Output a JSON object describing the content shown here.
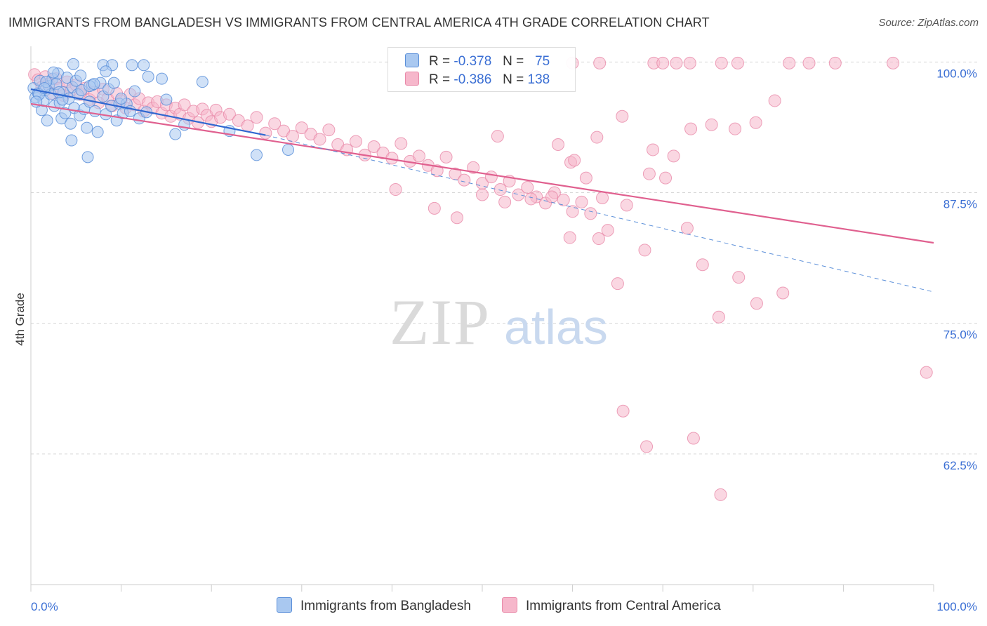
{
  "title": "IMMIGRANTS FROM BANGLADESH VS IMMIGRANTS FROM CENTRAL AMERICA 4TH GRADE CORRELATION CHART",
  "source": "Source: ZipAtlas.com",
  "watermark": {
    "zip": "ZIP",
    "atlas": "atlas"
  },
  "legend": {
    "r_label": "R =",
    "n_label": "N =",
    "rows": [
      {
        "series": "Immigrants from Bangladesh",
        "r": "-0.378",
        "n": "75"
      },
      {
        "series": "Immigrants from Central America",
        "r": "-0.386",
        "n": "138"
      }
    ]
  },
  "colors": {
    "blue_fill": "#a9c8f0",
    "blue_stroke": "#5b8fd9",
    "blue_line": "#3068d0",
    "pink_fill": "#f6b7cb",
    "pink_stroke": "#e98aa9",
    "pink_line": "#e0608f",
    "axis_label": "#3b6fd4",
    "grid": "#d6d6d6"
  },
  "chart_data": {
    "type": "scatter",
    "title": "IMMIGRANTS FROM BANGLADESH VS IMMIGRANTS FROM CENTRAL AMERICA 4TH GRADE CORRELATION CHART",
    "xlabel": "",
    "ylabel": "4th Grade",
    "xlim": [
      0,
      100
    ],
    "ylim": [
      50,
      101.5
    ],
    "x_tick_labels": [
      "0.0%",
      "100.0%"
    ],
    "y_ticks": [
      100.0,
      87.5,
      75.0,
      62.5
    ],
    "y_tick_labels": [
      "100.0%",
      "87.5%",
      "75.0%",
      "62.5%"
    ],
    "series": [
      {
        "name": "Immigrants from Bangladesh",
        "color": "blue",
        "trend": {
          "x0": 0,
          "y0": 97.4,
          "x1": 26,
          "y1": 93.0
        },
        "trend_dashed": {
          "x0": 26,
          "y0": 93.0,
          "x1": 100,
          "y1": 78.0
        },
        "points": [
          [
            0.3,
            97.5
          ],
          [
            0.5,
            96.6
          ],
          [
            0.8,
            97.0
          ],
          [
            1.0,
            98.2
          ],
          [
            1.2,
            95.4
          ],
          [
            1.4,
            96.3
          ],
          [
            1.6,
            97.3
          ],
          [
            1.8,
            94.4
          ],
          [
            2.0,
            97.7
          ],
          [
            2.2,
            96.9
          ],
          [
            2.4,
            98.4
          ],
          [
            2.6,
            95.8
          ],
          [
            2.8,
            97.9
          ],
          [
            3.0,
            98.9
          ],
          [
            3.2,
            96.1
          ],
          [
            3.4,
            94.6
          ],
          [
            3.6,
            97.1
          ],
          [
            3.8,
            95.1
          ],
          [
            4.0,
            98.5
          ],
          [
            4.2,
            96.5
          ],
          [
            4.4,
            94.1
          ],
          [
            4.6,
            97.6
          ],
          [
            4.8,
            95.6
          ],
          [
            5.0,
            98.2
          ],
          [
            5.2,
            96.9
          ],
          [
            5.4,
            94.9
          ],
          [
            5.6,
            97.3
          ],
          [
            5.9,
            95.5
          ],
          [
            6.2,
            93.7
          ],
          [
            6.5,
            96.2
          ],
          [
            6.8,
            97.8
          ],
          [
            7.1,
            95.3
          ],
          [
            7.4,
            93.3
          ],
          [
            7.7,
            98.0
          ],
          [
            8.0,
            96.7
          ],
          [
            8.3,
            95.0
          ],
          [
            8.6,
            97.4
          ],
          [
            8.9,
            95.8
          ],
          [
            9.2,
            98.0
          ],
          [
            9.5,
            94.4
          ],
          [
            9.8,
            96.0
          ],
          [
            10.2,
            95.1
          ],
          [
            10.6,
            96.0
          ],
          [
            11.0,
            95.3
          ],
          [
            11.5,
            97.2
          ],
          [
            12.0,
            94.6
          ],
          [
            12.5,
            99.7
          ],
          [
            13.0,
            98.6
          ],
          [
            14.5,
            98.4
          ],
          [
            16.0,
            93.1
          ],
          [
            6.3,
            90.9
          ],
          [
            4.5,
            92.5
          ],
          [
            8.0,
            99.7
          ],
          [
            9.0,
            99.7
          ],
          [
            6.5,
            97.7
          ],
          [
            3.5,
            96.4
          ],
          [
            2.5,
            99.0
          ],
          [
            1.7,
            98.1
          ],
          [
            0.9,
            96.9
          ],
          [
            4.7,
            99.8
          ],
          [
            15.0,
            96.4
          ],
          [
            19.0,
            98.1
          ],
          [
            22.0,
            93.4
          ],
          [
            17.0,
            94.0
          ],
          [
            12.8,
            95.2
          ],
          [
            10.0,
            96.5
          ],
          [
            7.0,
            97.9
          ],
          [
            5.5,
            98.7
          ],
          [
            3.1,
            97.1
          ],
          [
            1.5,
            97.5
          ],
          [
            0.6,
            96.2
          ],
          [
            8.3,
            99.1
          ],
          [
            11.2,
            99.7
          ],
          [
            25.0,
            91.1
          ],
          [
            28.5,
            91.6
          ]
        ]
      },
      {
        "name": "Immigrants from Central America",
        "color": "pink",
        "trend": {
          "x0": 0,
          "y0": 96.0,
          "x1": 100,
          "y1": 82.7
        },
        "points": [
          [
            0.4,
            98.8
          ],
          [
            0.8,
            98.3
          ],
          [
            1.2,
            97.6
          ],
          [
            1.6,
            98.6
          ],
          [
            2.0,
            97.9
          ],
          [
            2.4,
            97.0
          ],
          [
            2.8,
            98.4
          ],
          [
            3.2,
            97.5
          ],
          [
            3.6,
            96.8
          ],
          [
            4.0,
            98.1
          ],
          [
            4.5,
            97.3
          ],
          [
            5.0,
            97.8
          ],
          [
            5.5,
            96.9
          ],
          [
            6.0,
            97.5
          ],
          [
            6.5,
            96.4
          ],
          [
            7.0,
            97.1
          ],
          [
            7.5,
            96.1
          ],
          [
            8.0,
            97.4
          ],
          [
            8.5,
            96.5
          ],
          [
            9.0,
            95.8
          ],
          [
            9.5,
            97.0
          ],
          [
            10.0,
            96.3
          ],
          [
            10.5,
            95.6
          ],
          [
            11.0,
            96.9
          ],
          [
            11.5,
            95.9
          ],
          [
            12.0,
            96.5
          ],
          [
            12.5,
            95.3
          ],
          [
            13.0,
            96.1
          ],
          [
            13.5,
            95.6
          ],
          [
            14.0,
            96.2
          ],
          [
            14.5,
            95.1
          ],
          [
            15.0,
            95.9
          ],
          [
            15.5,
            94.8
          ],
          [
            16.0,
            95.6
          ],
          [
            16.5,
            95.0
          ],
          [
            17.0,
            95.9
          ],
          [
            17.5,
            94.6
          ],
          [
            18.0,
            95.3
          ],
          [
            18.5,
            94.2
          ],
          [
            19.0,
            95.5
          ],
          [
            19.5,
            94.9
          ],
          [
            20.0,
            94.3
          ],
          [
            20.5,
            95.4
          ],
          [
            21.0,
            94.7
          ],
          [
            22.0,
            95.0
          ],
          [
            23.0,
            94.4
          ],
          [
            24.0,
            93.9
          ],
          [
            25.0,
            94.7
          ],
          [
            26.0,
            93.2
          ],
          [
            27.0,
            94.1
          ],
          [
            28.0,
            93.4
          ],
          [
            29.0,
            92.9
          ],
          [
            30.0,
            93.7
          ],
          [
            31.0,
            93.1
          ],
          [
            32.0,
            92.6
          ],
          [
            33.0,
            93.5
          ],
          [
            34.0,
            92.1
          ],
          [
            35.0,
            91.6
          ],
          [
            36.0,
            92.4
          ],
          [
            37.0,
            91.1
          ],
          [
            38.0,
            91.9
          ],
          [
            39.0,
            91.3
          ],
          [
            40.0,
            90.8
          ],
          [
            41.0,
            92.2
          ],
          [
            42.0,
            90.5
          ],
          [
            43.0,
            91.0
          ],
          [
            44.0,
            90.1
          ],
          [
            45.0,
            89.6
          ],
          [
            46.0,
            90.9
          ],
          [
            47.0,
            89.3
          ],
          [
            48.0,
            88.7
          ],
          [
            49.0,
            89.9
          ],
          [
            50.0,
            88.4
          ],
          [
            51.0,
            89.0
          ],
          [
            52.0,
            87.8
          ],
          [
            53.0,
            88.6
          ],
          [
            54.0,
            87.3
          ],
          [
            55.0,
            88.0
          ],
          [
            56.0,
            87.1
          ],
          [
            57.0,
            86.5
          ],
          [
            58.0,
            87.5
          ],
          [
            59.0,
            86.8
          ],
          [
            60.0,
            85.7
          ],
          [
            61.0,
            86.6
          ],
          [
            62.0,
            85.5
          ],
          [
            40.4,
            87.8
          ],
          [
            44.7,
            86.0
          ],
          [
            47.2,
            85.1
          ],
          [
            50.0,
            87.3
          ],
          [
            52.5,
            86.6
          ],
          [
            55.4,
            86.9
          ],
          [
            57.7,
            87.1
          ],
          [
            59.8,
            90.4
          ],
          [
            61.5,
            88.9
          ],
          [
            63.3,
            87.0
          ],
          [
            66.0,
            86.3
          ],
          [
            68.5,
            89.3
          ],
          [
            70.3,
            88.9
          ],
          [
            72.7,
            84.1
          ],
          [
            74.4,
            80.6
          ],
          [
            76.2,
            75.6
          ],
          [
            78.4,
            79.4
          ],
          [
            80.4,
            76.9
          ],
          [
            83.3,
            77.9
          ],
          [
            59.7,
            83.2
          ],
          [
            62.9,
            83.1
          ],
          [
            63.9,
            83.9
          ],
          [
            65.0,
            78.8
          ],
          [
            68.0,
            82.0
          ],
          [
            51.7,
            92.9
          ],
          [
            58.4,
            92.1
          ],
          [
            60.2,
            90.6
          ],
          [
            62.7,
            92.8
          ],
          [
            65.5,
            94.8
          ],
          [
            68.9,
            91.6
          ],
          [
            71.2,
            91.0
          ],
          [
            73.1,
            93.6
          ],
          [
            75.4,
            94.0
          ],
          [
            78.0,
            93.6
          ],
          [
            80.3,
            94.2
          ],
          [
            82.4,
            96.3
          ],
          [
            60.0,
            99.9
          ],
          [
            63.0,
            99.9
          ],
          [
            69.0,
            99.9
          ],
          [
            70.0,
            99.9
          ],
          [
            71.5,
            99.9
          ],
          [
            73.0,
            99.9
          ],
          [
            76.5,
            99.9
          ],
          [
            78.3,
            99.9
          ],
          [
            84.0,
            99.9
          ],
          [
            86.2,
            99.9
          ],
          [
            89.1,
            99.9
          ],
          [
            95.5,
            99.9
          ],
          [
            99.2,
            70.3
          ],
          [
            65.6,
            66.6
          ],
          [
            68.2,
            63.2
          ],
          [
            73.4,
            64.0
          ],
          [
            76.4,
            58.6
          ]
        ]
      }
    ]
  },
  "bottom_legend": {
    "bangladesh": "Immigrants from Bangladesh",
    "central_america": "Immigrants from Central America"
  }
}
